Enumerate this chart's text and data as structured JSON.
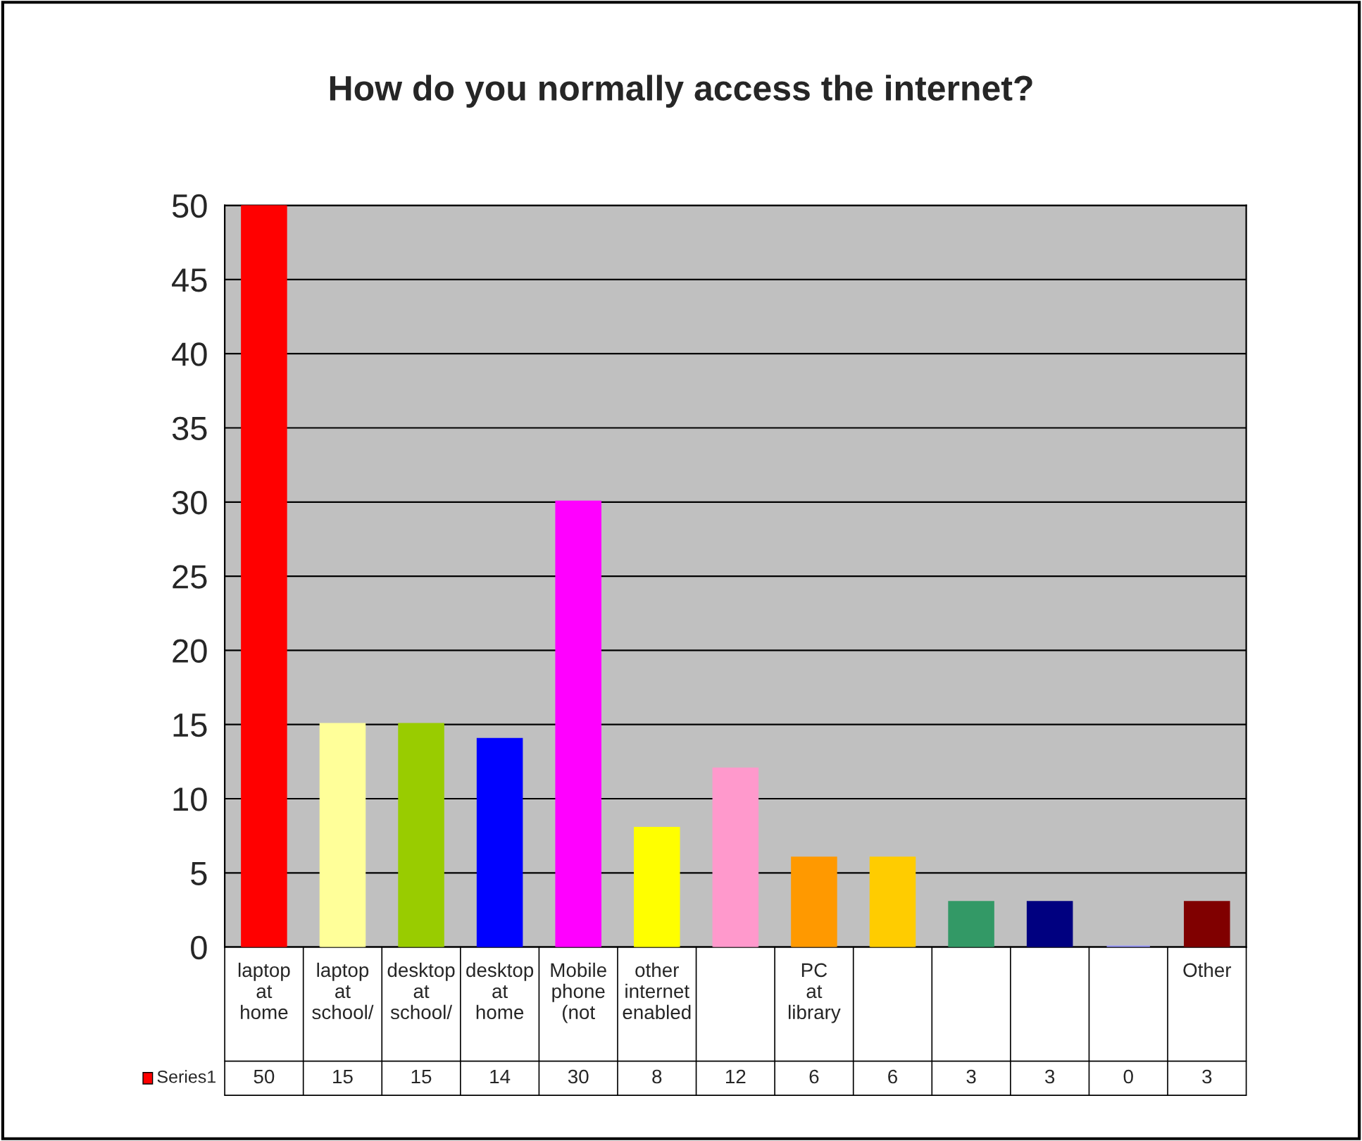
{
  "chart_data": {
    "type": "bar",
    "title": "How do you normally access the internet?",
    "categories": [
      "laptop at home",
      "laptop at school/",
      "desktop at school/",
      "desktop at home",
      "Mobile phone (not",
      "other internet enabled",
      null,
      "PC at library",
      null,
      null,
      null,
      null,
      "Other"
    ],
    "series": [
      {
        "name": "Series1",
        "values": [
          50,
          15,
          15,
          14,
          30,
          8,
          12,
          6,
          6,
          3,
          3,
          0,
          3
        ],
        "colors": [
          "#ff0000",
          "#ffff99",
          "#99cc00",
          "#0000ff",
          "#ff00ff",
          "#ffff00",
          "#ff99cc",
          "#ff9900",
          "#ffcc00",
          "#339966",
          "#000080",
          "#9999ff",
          "#800000"
        ]
      }
    ],
    "ylim": [
      0,
      50
    ],
    "yticks": [
      0,
      5,
      10,
      15,
      20,
      25,
      30,
      35,
      40,
      45,
      50
    ],
    "grid": "y",
    "data_labels": true,
    "legend": "bottom"
  }
}
